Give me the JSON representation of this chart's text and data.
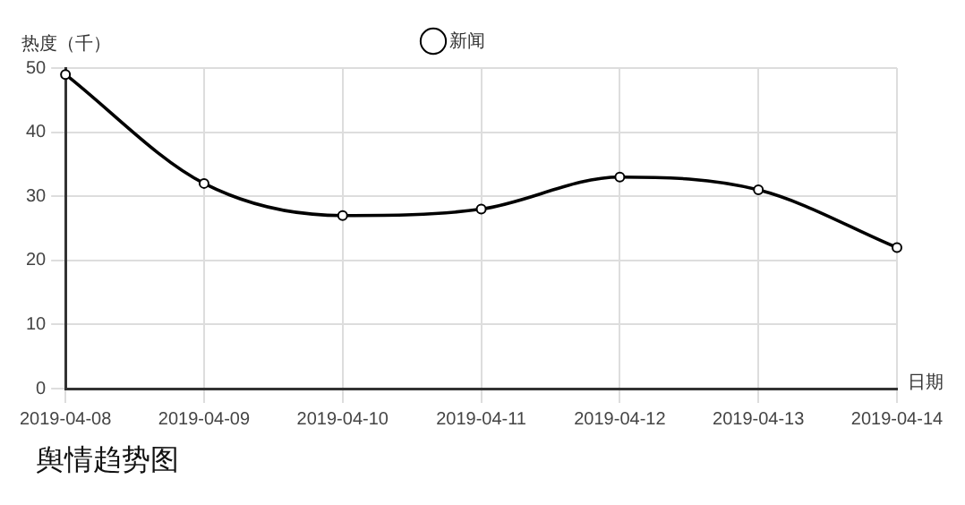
{
  "chart_data": {
    "type": "line",
    "title": "舆情趋势图",
    "xlabel": "日期",
    "ylabel": "热度（千）",
    "categories": [
      "2019-04-08",
      "2019-04-09",
      "2019-04-10",
      "2019-04-11",
      "2019-04-12",
      "2019-04-13",
      "2019-04-14"
    ],
    "series": [
      {
        "name": "新闻",
        "color": "#000000",
        "values": [
          49,
          32,
          27,
          28,
          33,
          31,
          22
        ]
      }
    ],
    "ylim": [
      0,
      50
    ],
    "yticks": [
      0,
      10,
      20,
      30,
      40,
      50
    ],
    "grid": true,
    "legend": "top",
    "marker": "circle",
    "line_style": "solid"
  }
}
